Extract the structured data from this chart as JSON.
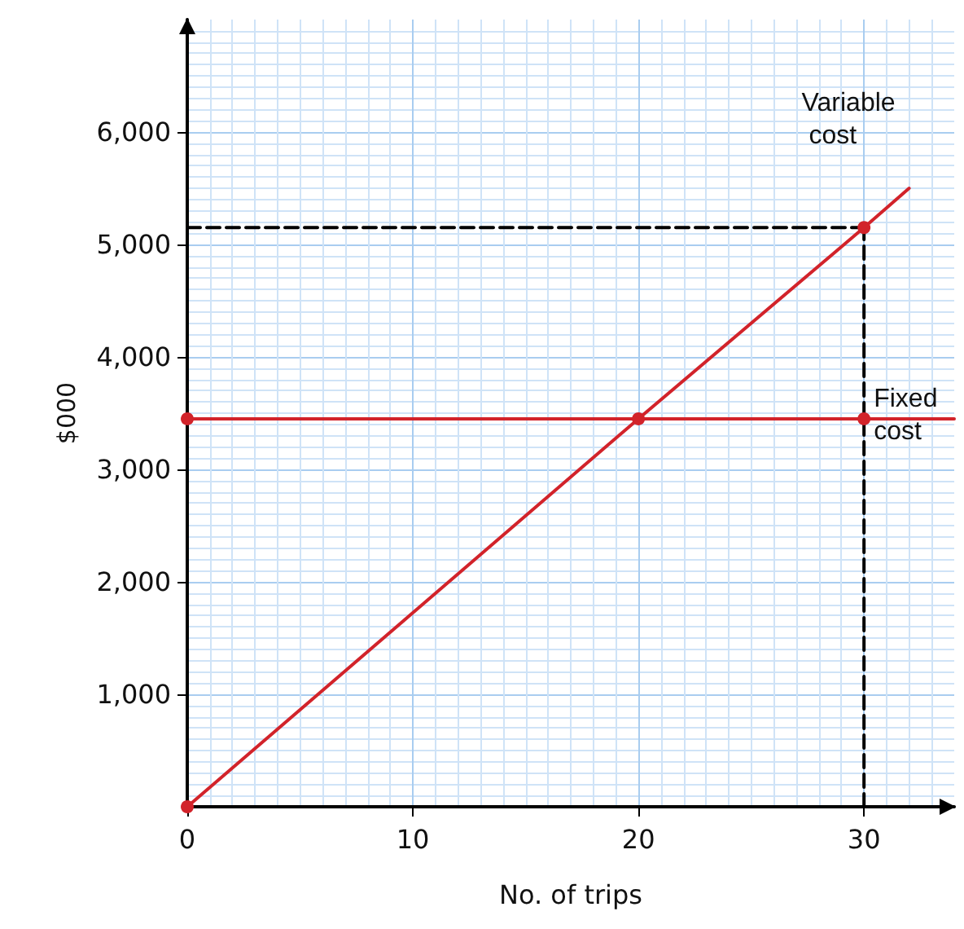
{
  "chart_data": {
    "type": "line",
    "xlabel": "No. of trips",
    "ylabel": "$000",
    "xlim": [
      0,
      34
    ],
    "ylim": [
      0,
      7000
    ],
    "xticks": [
      0,
      10,
      20,
      30
    ],
    "yticks": [
      {
        "value": 1000,
        "label": "1,000"
      },
      {
        "value": 2000,
        "label": "2,000"
      },
      {
        "value": 3000,
        "label": "3,000"
      },
      {
        "value": 4000,
        "label": "4,000"
      },
      {
        "value": 5000,
        "label": "5,000"
      },
      {
        "value": 6000,
        "label": "6,000"
      }
    ],
    "grid": true,
    "series": [
      {
        "name": "Variable cost",
        "color": "#d2232a",
        "x": [
          0,
          20,
          30,
          32
        ],
        "values": [
          0,
          3450,
          5150,
          5500
        ],
        "marker": "none"
      },
      {
        "name": "Fixed cost",
        "color": "#d2232a",
        "x": [
          0,
          20,
          30,
          34
        ],
        "values": [
          3450,
          3450,
          3450,
          3450
        ],
        "marker": "none"
      },
      {
        "type": "line",
        "color": "#000000",
        "x": [
          0,
          30
        ],
        "values": [
          5150,
          5150
        ],
        "line_style": "dashed",
        "marker": "none"
      },
      {
        "type": "line",
        "color": "#000000",
        "x": [
          30,
          30
        ],
        "values": [
          0,
          5150
        ],
        "line_style": "dashed",
        "marker": "none"
      },
      {
        "type": "scatter",
        "color": "#d2232a",
        "x": [
          0,
          0,
          20,
          30,
          30
        ],
        "values": [
          0,
          3450,
          3450,
          5150,
          3450
        ],
        "marker": "circle"
      }
    ]
  }
}
